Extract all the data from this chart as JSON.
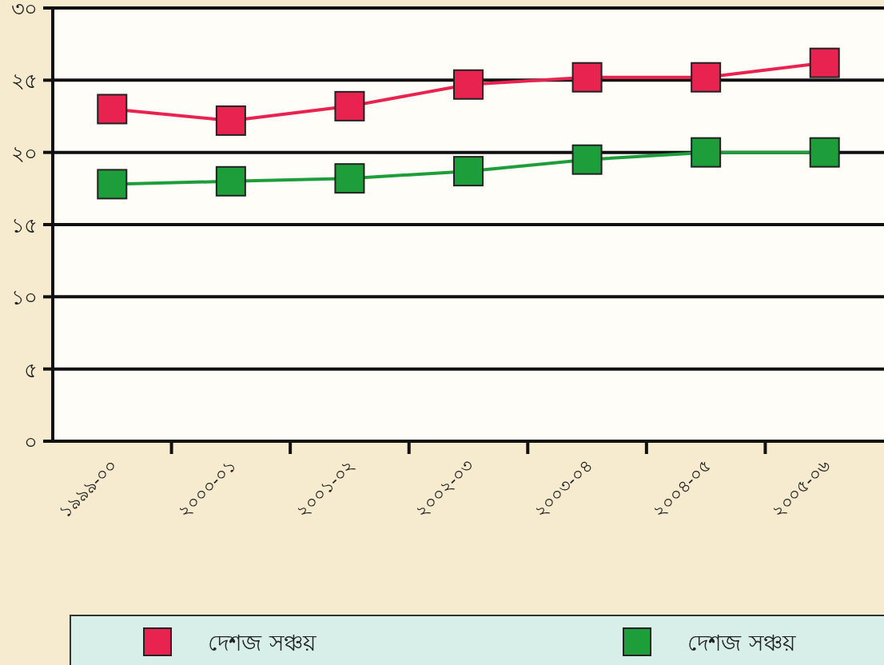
{
  "chart_data": {
    "type": "line",
    "categories": [
      "১৯৯৯-০০",
      "২০০০-০১",
      "২০০১-০২",
      "২০০২-০৩",
      "২০০৩-০৪",
      "২০০৪-০৫",
      "২০০৫-০৬"
    ],
    "series": [
      {
        "name": "দেশজ সঞ্চয়",
        "color": "#e8234f",
        "values": [
          23.0,
          22.2,
          23.2,
          24.7,
          25.2,
          25.2,
          26.2
        ]
      },
      {
        "name": "দেশজ সঞ্চয়",
        "color": "#1e9e3a",
        "values": [
          17.8,
          18.0,
          18.2,
          18.7,
          19.5,
          20.0,
          20.0
        ]
      }
    ],
    "ylim": [
      0,
      30
    ],
    "yticks": [
      {
        "value": 0,
        "label": "০"
      },
      {
        "value": 5,
        "label": "৫"
      },
      {
        "value": 10,
        "label": "১০"
      },
      {
        "value": 15,
        "label": "১৫"
      },
      {
        "value": 20,
        "label": "২০"
      },
      {
        "value": 25,
        "label": "২৫"
      },
      {
        "value": 30,
        "label": "৩০"
      }
    ],
    "grid": "y",
    "legend": "bottom",
    "marker": "square",
    "line_style": "solid"
  }
}
